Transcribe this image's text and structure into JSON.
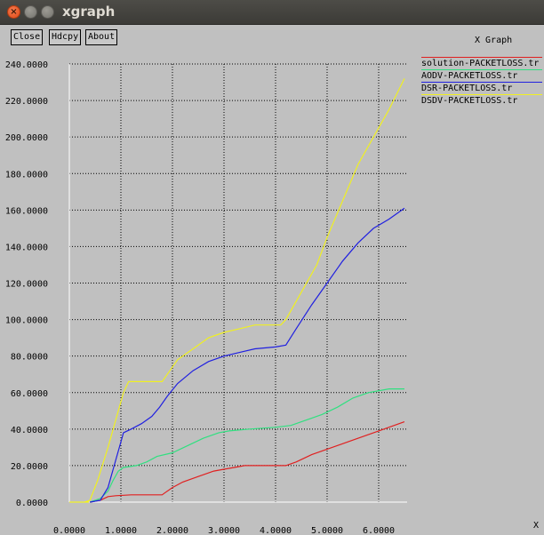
{
  "window": {
    "title": "xgraph",
    "buttons": {
      "close": "×",
      "minimize": "",
      "maximize": ""
    }
  },
  "toolbar": {
    "close_label": "Close",
    "hdcpy_label": "Hdcpy",
    "about_label": "About"
  },
  "graph": {
    "title": "X Graph"
  },
  "colors": {
    "background": "#c0c0c0",
    "grid": "#000000",
    "axis": "#ffffff"
  },
  "chart_data": {
    "type": "line",
    "title": "X Graph",
    "xlabel": "X",
    "ylabel": "",
    "xlim": [
      0,
      6.5
    ],
    "ylim": [
      0,
      240
    ],
    "grid": true,
    "legend_position": "top-right",
    "x_ticks": [
      "0.0000",
      "1.0000",
      "2.0000",
      "3.0000",
      "4.0000",
      "5.0000",
      "6.0000"
    ],
    "y_ticks": [
      "0.0000",
      "20.0000",
      "40.0000",
      "60.0000",
      "80.0000",
      "100.0000",
      "120.0000",
      "140.0000",
      "160.0000",
      "180.0000",
      "200.0000",
      "220.0000",
      "240.0000"
    ],
    "series": [
      {
        "name": "solution-PACKETLOSS.tr",
        "color": "#e02020",
        "points": [
          [
            0.4,
            0
          ],
          [
            0.6,
            1
          ],
          [
            0.75,
            3
          ],
          [
            0.9,
            3.5
          ],
          [
            1.2,
            4
          ],
          [
            1.8,
            4
          ],
          [
            1.85,
            5
          ],
          [
            2.0,
            8
          ],
          [
            2.2,
            11
          ],
          [
            2.5,
            14
          ],
          [
            2.8,
            17
          ],
          [
            3.0,
            18
          ],
          [
            3.2,
            19
          ],
          [
            3.4,
            20
          ],
          [
            3.7,
            20
          ],
          [
            4.2,
            20
          ],
          [
            4.4,
            22
          ],
          [
            4.7,
            26
          ],
          [
            5.0,
            29
          ],
          [
            5.5,
            34
          ],
          [
            6.0,
            39
          ],
          [
            6.5,
            44
          ]
        ]
      },
      {
        "name": "AODV-PACKETLOSS.tr",
        "color": "#30e080",
        "points": [
          [
            0.4,
            0
          ],
          [
            0.6,
            2
          ],
          [
            0.75,
            6
          ],
          [
            0.85,
            12
          ],
          [
            0.95,
            17
          ],
          [
            1.05,
            19
          ],
          [
            1.3,
            20
          ],
          [
            1.5,
            22
          ],
          [
            1.7,
            25
          ],
          [
            2.0,
            27
          ],
          [
            2.3,
            31
          ],
          [
            2.6,
            35
          ],
          [
            2.9,
            38
          ],
          [
            3.1,
            39
          ],
          [
            3.5,
            40
          ],
          [
            4.0,
            41
          ],
          [
            4.3,
            42
          ],
          [
            4.6,
            45
          ],
          [
            4.9,
            48
          ],
          [
            5.2,
            52
          ],
          [
            5.5,
            57
          ],
          [
            5.8,
            60
          ],
          [
            6.2,
            62
          ],
          [
            6.5,
            62
          ]
        ]
      },
      {
        "name": "DSR-PACKETLOSS.tr",
        "color": "#2020e0",
        "points": [
          [
            0.4,
            0
          ],
          [
            0.6,
            1
          ],
          [
            0.75,
            8
          ],
          [
            0.85,
            18
          ],
          [
            0.95,
            28
          ],
          [
            1.05,
            38
          ],
          [
            1.2,
            40
          ],
          [
            1.4,
            43
          ],
          [
            1.6,
            47
          ],
          [
            1.75,
            52
          ],
          [
            1.9,
            58
          ],
          [
            2.1,
            65
          ],
          [
            2.4,
            72
          ],
          [
            2.7,
            77
          ],
          [
            3.0,
            80
          ],
          [
            3.3,
            82
          ],
          [
            3.6,
            84
          ],
          [
            4.0,
            85
          ],
          [
            4.2,
            86
          ],
          [
            4.4,
            95
          ],
          [
            4.7,
            108
          ],
          [
            5.0,
            120
          ],
          [
            5.3,
            132
          ],
          [
            5.6,
            142
          ],
          [
            5.9,
            150
          ],
          [
            6.2,
            155
          ],
          [
            6.5,
            161
          ]
        ]
      },
      {
        "name": "DSDV-PACKETLOSS.tr",
        "color": "#f0f020",
        "points": [
          [
            0.3,
            0
          ],
          [
            0.4,
            1
          ],
          [
            0.55,
            12
          ],
          [
            0.75,
            30
          ],
          [
            0.9,
            45
          ],
          [
            1.05,
            60
          ],
          [
            1.15,
            66
          ],
          [
            1.4,
            66
          ],
          [
            1.8,
            66
          ],
          [
            1.9,
            70
          ],
          [
            2.1,
            78
          ],
          [
            2.4,
            84
          ],
          [
            2.7,
            90
          ],
          [
            3.0,
            93
          ],
          [
            3.3,
            95
          ],
          [
            3.6,
            97
          ],
          [
            4.1,
            97
          ],
          [
            4.2,
            100
          ],
          [
            4.5,
            115
          ],
          [
            4.8,
            130
          ],
          [
            5.0,
            145
          ],
          [
            5.3,
            165
          ],
          [
            5.6,
            185
          ],
          [
            5.9,
            200
          ],
          [
            6.2,
            215
          ],
          [
            6.5,
            232
          ]
        ]
      }
    ]
  }
}
